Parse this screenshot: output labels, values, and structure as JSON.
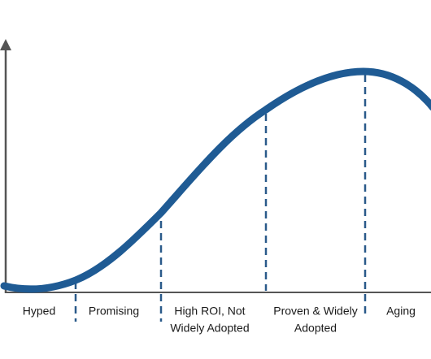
{
  "stages": [
    {
      "lines": [
        "Hyped"
      ]
    },
    {
      "lines": [
        "Promising"
      ]
    },
    {
      "lines": [
        "High ROI, Not",
        "Widely Adopted"
      ]
    },
    {
      "lines": [
        "Proven & Widely",
        "Adopted"
      ]
    },
    {
      "lines": [
        "Aging"
      ]
    }
  ]
}
